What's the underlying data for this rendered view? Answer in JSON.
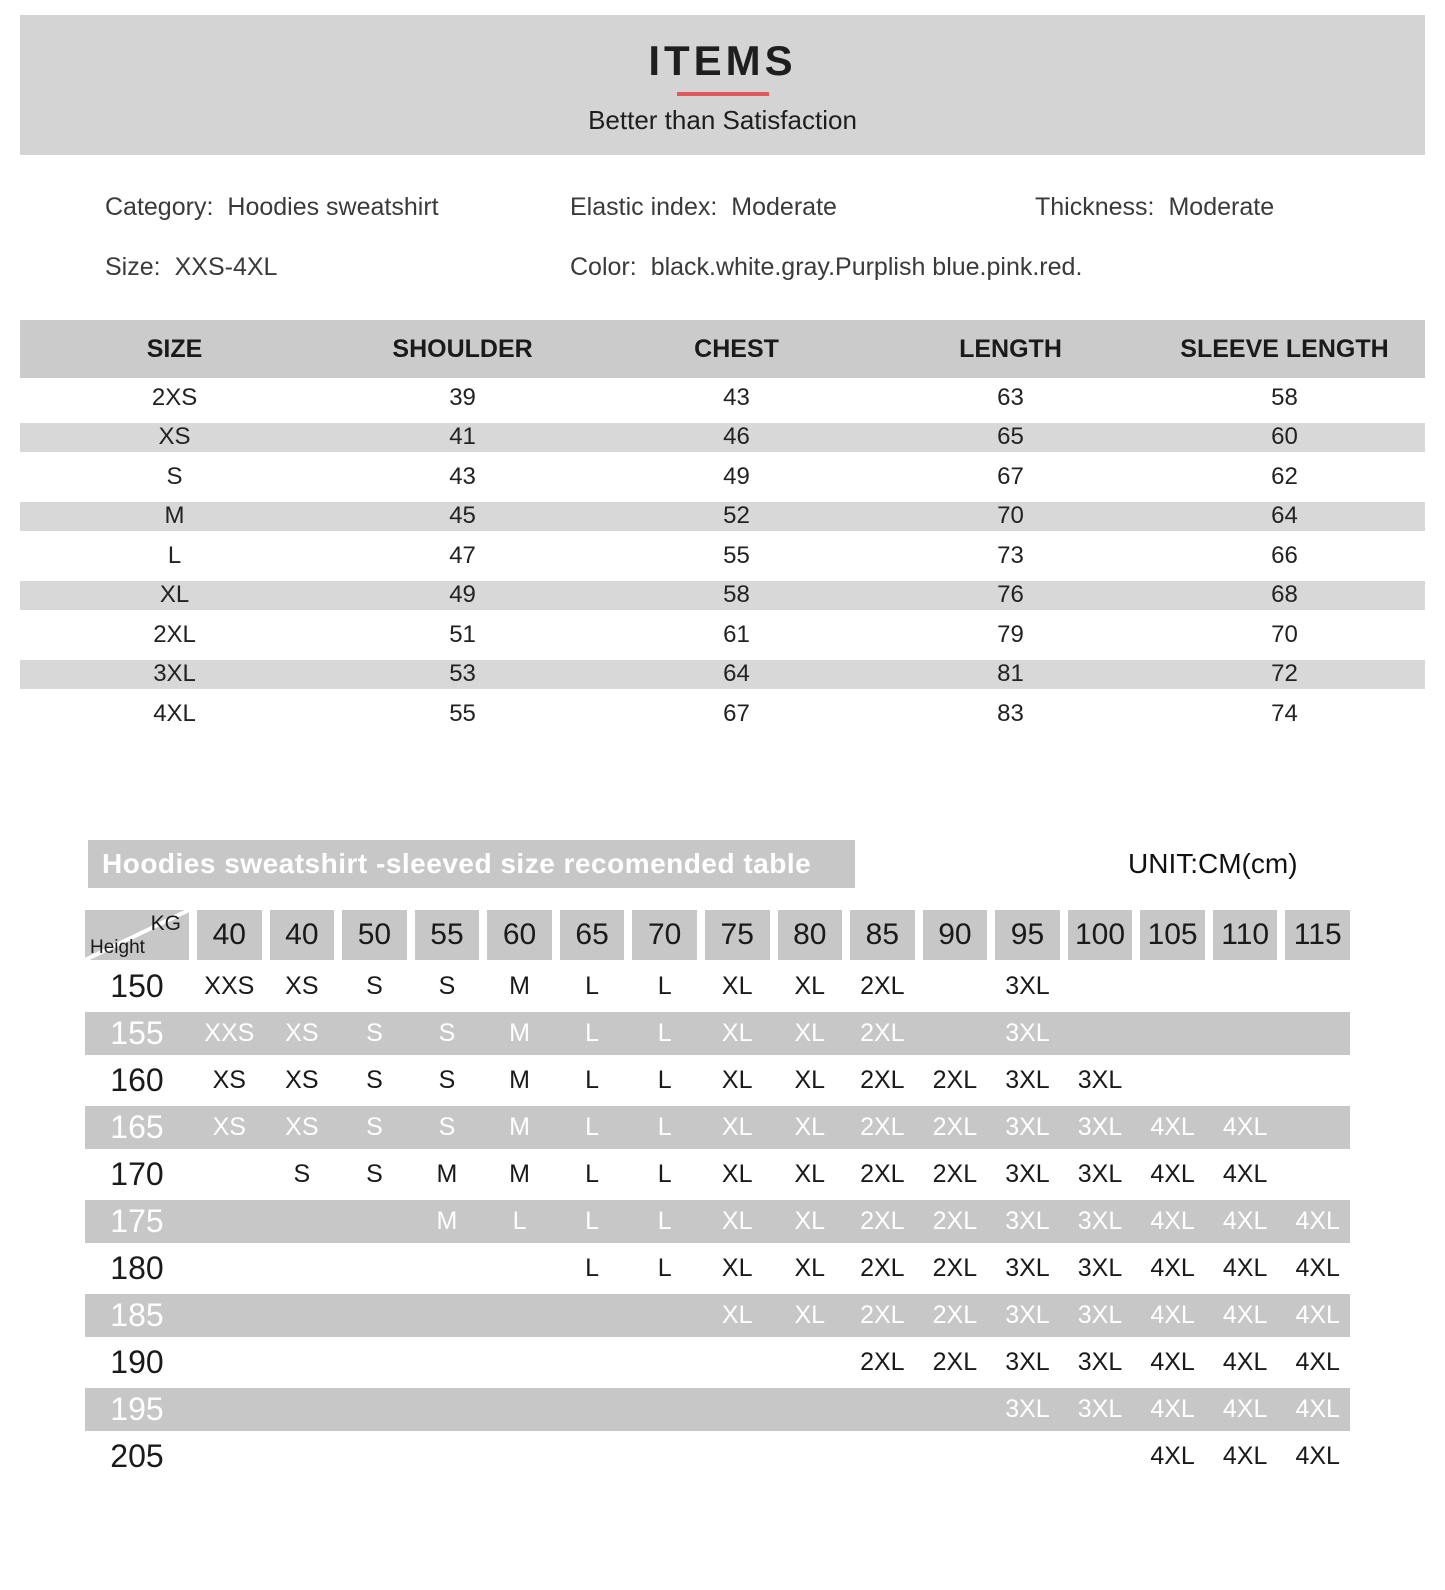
{
  "header": {
    "title": "ITEMS",
    "subtitle": "Better than Satisfaction"
  },
  "info": {
    "category_label": "Category:",
    "category_value": "Hoodies sweatshirt",
    "elastic_label": "Elastic index:",
    "elastic_value": "Moderate",
    "thickness_label": "Thickness:",
    "thickness_value": "Moderate",
    "size_label": "Size:",
    "size_value": "XXS-4XL",
    "color_label": "Color:",
    "color_value": "black.white.gray.Purplish blue.pink.red."
  },
  "size_table": {
    "headers": [
      "SIZE",
      "SHOULDER",
      "CHEST",
      "LENGTH",
      "SLEEVE LENGTH"
    ],
    "rows": [
      [
        "2XS",
        "39",
        "43",
        "63",
        "58"
      ],
      [
        "XS",
        "41",
        "46",
        "65",
        "60"
      ],
      [
        "S",
        "43",
        "49",
        "67",
        "62"
      ],
      [
        "M",
        "45",
        "52",
        "70",
        "64"
      ],
      [
        "L",
        "47",
        "55",
        "73",
        "66"
      ],
      [
        "XL",
        "49",
        "58",
        "76",
        "68"
      ],
      [
        "2XL",
        "51",
        "61",
        "79",
        "70"
      ],
      [
        "3XL",
        "53",
        "64",
        "81",
        "72"
      ],
      [
        "4XL",
        "55",
        "67",
        "83",
        "74"
      ]
    ]
  },
  "recommend_table": {
    "title": "Hoodies sweatshirt -sleeved size recomended table",
    "unit": "UNIT:CM(cm)",
    "corner": {
      "top": "KG",
      "bottom": "Height"
    },
    "kg_columns": [
      "40",
      "40",
      "50",
      "55",
      "60",
      "65",
      "70",
      "75",
      "80",
      "85",
      "90",
      "95",
      "100",
      "105",
      "110",
      "115"
    ],
    "rows": [
      {
        "height": "150",
        "cells": [
          "XXS",
          "XS",
          "S",
          "S",
          "M",
          "L",
          "L",
          "XL",
          "XL",
          "2XL",
          "",
          "3XL",
          "",
          "",
          "",
          ""
        ]
      },
      {
        "height": "155",
        "cells": [
          "XXS",
          "XS",
          "S",
          "S",
          "M",
          "L",
          "L",
          "XL",
          "XL",
          "2XL",
          "",
          "3XL",
          "",
          "",
          "",
          ""
        ]
      },
      {
        "height": "160",
        "cells": [
          "XS",
          "XS",
          "S",
          "S",
          "M",
          "L",
          "L",
          "XL",
          "XL",
          "2XL",
          "2XL",
          "3XL",
          "3XL",
          "",
          "",
          ""
        ]
      },
      {
        "height": "165",
        "cells": [
          "XS",
          "XS",
          "S",
          "S",
          "M",
          "L",
          "L",
          "XL",
          "XL",
          "2XL",
          "2XL",
          "3XL",
          "3XL",
          "4XL",
          "4XL",
          ""
        ]
      },
      {
        "height": "170",
        "cells": [
          "",
          "S",
          "S",
          "M",
          "M",
          "L",
          "L",
          "XL",
          "XL",
          "2XL",
          "2XL",
          "3XL",
          "3XL",
          "4XL",
          "4XL",
          ""
        ]
      },
      {
        "height": "175",
        "cells": [
          "",
          "",
          "",
          "M",
          "L",
          "L",
          "L",
          "XL",
          "XL",
          "2XL",
          "2XL",
          "3XL",
          "3XL",
          "4XL",
          "4XL",
          "4XL"
        ]
      },
      {
        "height": "180",
        "cells": [
          "",
          "",
          "",
          "",
          "",
          "L",
          "L",
          "XL",
          "XL",
          "2XL",
          "2XL",
          "3XL",
          "3XL",
          "4XL",
          "4XL",
          "4XL"
        ]
      },
      {
        "height": "185",
        "cells": [
          "",
          "",
          "",
          "",
          "",
          "",
          "",
          "XL",
          "XL",
          "2XL",
          "2XL",
          "3XL",
          "3XL",
          "4XL",
          "4XL",
          "4XL"
        ]
      },
      {
        "height": "190",
        "cells": [
          "",
          "",
          "",
          "",
          "",
          "",
          "",
          "",
          "",
          "2XL",
          "2XL",
          "3XL",
          "3XL",
          "4XL",
          "4XL",
          "4XL"
        ]
      },
      {
        "height": "195",
        "cells": [
          "",
          "",
          "",
          "",
          "",
          "",
          "",
          "",
          "",
          "",
          "",
          "3XL",
          "3XL",
          "4XL",
          "4XL",
          "4XL"
        ]
      },
      {
        "height": "205",
        "cells": [
          "",
          "",
          "",
          "",
          "",
          "",
          "",
          "",
          "",
          "",
          "",
          "",
          "",
          "4XL",
          "4XL",
          "4XL"
        ]
      }
    ]
  },
  "colors": {
    "banner_bg": "#d4d4d4",
    "accent_red": "#e05a5a",
    "table1_header_bg": "#cbcbcb",
    "table1_stripe_bg": "#d8d8d8",
    "table2_bg": "#c7c7c7"
  }
}
